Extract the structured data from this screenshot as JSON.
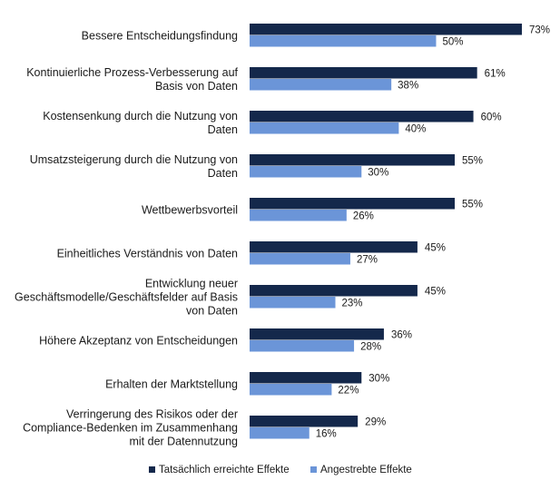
{
  "chart_data": {
    "type": "bar",
    "orientation": "horizontal",
    "categories": [
      [
        "Bessere Entscheidungsfindung"
      ],
      [
        "Kontinuierliche Prozess-Verbesserung auf",
        "Basis von Daten"
      ],
      [
        "Kostensenkung durch die Nutzung von",
        "Daten"
      ],
      [
        "Umsatzsteigerung durch die Nutzung von",
        "Daten"
      ],
      [
        "Wettbewerbsvorteil"
      ],
      [
        "Einheitliches Verständnis von Daten"
      ],
      [
        "Entwicklung neuer",
        "Geschäftsmodelle/Geschäftsfelder auf Basis",
        "von Daten"
      ],
      [
        "Höhere Akzeptanz von Entscheidungen"
      ],
      [
        "Erhalten der Marktstellung"
      ],
      [
        "Verringerung des Risikos oder der",
        "Compliance-Bedenken im Zusammenhang",
        "mit der Datennutzung"
      ]
    ],
    "series": [
      {
        "name": "Tatsächlich erreichte Effekte",
        "color": "#14284b",
        "values": [
          73,
          61,
          60,
          55,
          55,
          45,
          45,
          36,
          30,
          29
        ],
        "labels": [
          "73%",
          "61%",
          "60%",
          "55%",
          "55%",
          "45%",
          "45%",
          "36%",
          "30%",
          "29%"
        ]
      },
      {
        "name": "Angestrebte Effekte",
        "color": "#6b95d8",
        "values": [
          50,
          38,
          40,
          30,
          26,
          27,
          23,
          28,
          22,
          16
        ],
        "labels": [
          "50%",
          "38%",
          "40%",
          "30%",
          "26%",
          "27%",
          "23%",
          "28%",
          "22%",
          "16%"
        ]
      }
    ],
    "xlim": [
      0,
      73
    ],
    "grid": false,
    "legend_position": "bottom"
  }
}
